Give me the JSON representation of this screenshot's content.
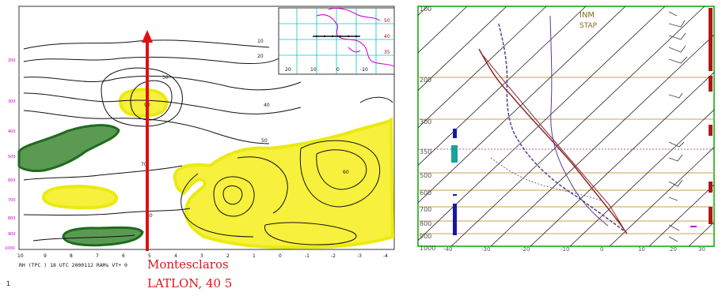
{
  "left": {
    "location_line1": "Montesclaros",
    "location_line2": "LATLON, 40 5",
    "footer_caption": "RH (TPC ) 18 UTC 2000112 RAMs VT+ 0",
    "page_number": "1",
    "y_axis_levels": [
      "200",
      "300",
      "400",
      "500",
      "600",
      "700",
      "800",
      "900",
      "1000"
    ],
    "x_axis_ticks": [
      "10",
      "9",
      "8",
      "7",
      "6",
      "5",
      "4",
      "3",
      "2",
      "1",
      "0",
      "-1",
      "-2",
      "-3",
      "-4"
    ],
    "contour_labels": [
      "10",
      "20",
      "30",
      "40",
      "50",
      "60",
      "70",
      "80",
      "90"
    ],
    "inset_lon_labels": [
      "20",
      "10",
      "0",
      "-10"
    ],
    "inset_lat_labels": [
      "50",
      "40",
      "35"
    ],
    "colors": {
      "moist_fill": "#f7f03c",
      "moist_edge": "#eaea10",
      "dry_fill": "#5a9a52",
      "dry_edge": "#1f6b1f",
      "section_line": "#e01010",
      "axis_text": "#cc00cc",
      "inset_grid": "#00cccc",
      "inset_coast": "#cc00cc"
    }
  },
  "right": {
    "title_line1": "INM",
    "title_line2": "STAP",
    "pressure_labels": [
      "100",
      "200",
      "300",
      "350",
      "500",
      "600",
      "700",
      "800",
      "900",
      "1000"
    ],
    "temperature_labels": [
      "-40",
      "-30",
      "-20",
      "-10",
      "0",
      "10",
      "20",
      "30"
    ],
    "colors": {
      "grid": "#c8a050",
      "isotherm": "#222222",
      "temperature_curve": "#8b2a2a",
      "dewpoint_curve": "#5a3a9a",
      "frame": "#00aa00",
      "bar_red": "#b01818",
      "bar_blue": "#1818a0",
      "bar_cyan": "#1aa0a0"
    }
  }
}
